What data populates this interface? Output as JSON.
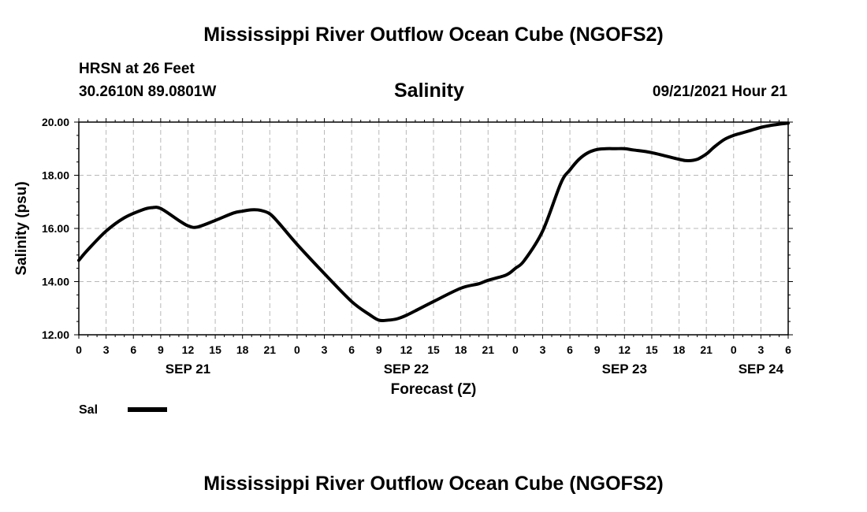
{
  "header": {
    "top_title": "Mississippi River Outflow Ocean Cube (NGOFS2)",
    "station": "HRSN at 26 Feet",
    "coords": "30.2610N  89.0801W",
    "variable": "Salinity",
    "timestamp": "09/21/2021 Hour 21"
  },
  "footer": {
    "bottom_title": "Mississippi River Outflow Ocean Cube (NGOFS2)"
  },
  "legend": {
    "label": "Sal",
    "color": "#000000"
  },
  "chart_data": {
    "type": "line",
    "title": "Salinity",
    "xlabel": "Forecast (Z)",
    "ylabel": "Salinity (psu)",
    "ylim": [
      12,
      20
    ],
    "xlim": [
      0,
      78
    ],
    "grid": true,
    "y_ticks": [
      "12.00",
      "14.00",
      "16.00",
      "18.00",
      "20.00"
    ],
    "x_tick_labels": [
      "0",
      "3",
      "6",
      "9",
      "12",
      "15",
      "18",
      "21",
      "0",
      "3",
      "6",
      "9",
      "12",
      "15",
      "18",
      "21",
      "0",
      "3",
      "6",
      "9",
      "12",
      "15",
      "18",
      "21",
      "0",
      "3",
      "6"
    ],
    "date_labels": [
      {
        "hour": 12,
        "label": "SEP 21"
      },
      {
        "hour": 36,
        "label": "SEP 22"
      },
      {
        "hour": 60,
        "label": "SEP 23"
      },
      {
        "hour": 75,
        "label": "SEP 24"
      }
    ],
    "series": [
      {
        "name": "Sal",
        "color": "#000000",
        "x": [
          0,
          1,
          3,
          5,
          7,
          8,
          9,
          11,
          12,
          13,
          15,
          17,
          18,
          19,
          20,
          21,
          22,
          24,
          27,
          30,
          32,
          33,
          34,
          35,
          36,
          37,
          39,
          42,
          44,
          45,
          47,
          48,
          49,
          51,
          53,
          54,
          55,
          56,
          57,
          58,
          59,
          60,
          61,
          63,
          66,
          67,
          68,
          69,
          69.5,
          70,
          71,
          72,
          73,
          74,
          75,
          76,
          77,
          78
        ],
        "values": [
          14.8,
          15.2,
          15.9,
          16.4,
          16.7,
          16.78,
          16.75,
          16.3,
          16.1,
          16.05,
          16.3,
          16.58,
          16.65,
          16.7,
          16.68,
          16.55,
          16.2,
          15.4,
          14.3,
          13.25,
          12.75,
          12.55,
          12.55,
          12.6,
          12.73,
          12.9,
          13.25,
          13.75,
          13.92,
          14.05,
          14.25,
          14.5,
          14.8,
          15.9,
          17.7,
          18.2,
          18.6,
          18.85,
          18.97,
          19.0,
          19.0,
          19.0,
          18.95,
          18.85,
          18.6,
          18.55,
          18.6,
          18.8,
          18.95,
          19.1,
          19.35,
          19.5,
          19.6,
          19.7,
          19.8,
          19.87,
          19.92,
          19.96
        ]
      }
    ]
  }
}
